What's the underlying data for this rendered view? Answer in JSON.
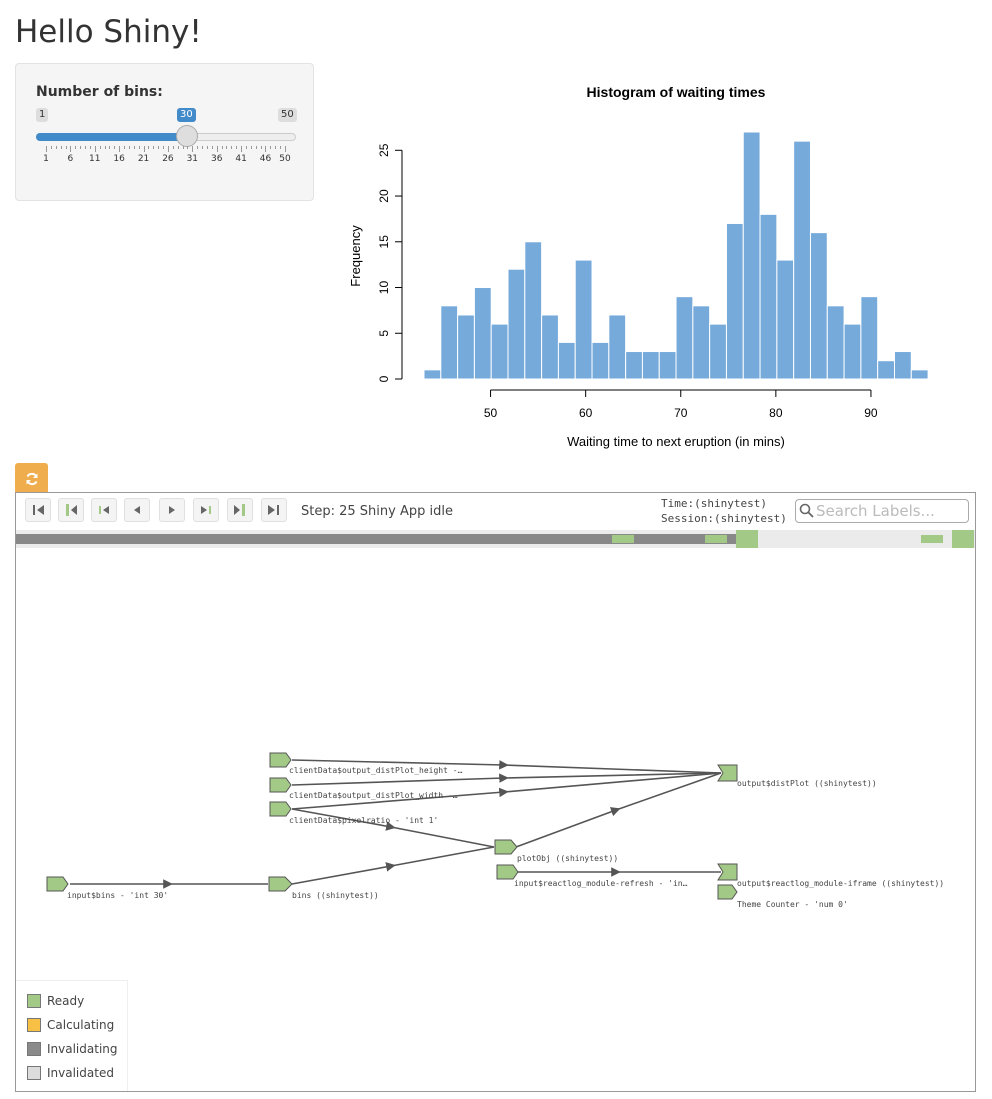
{
  "page": {
    "title": "Hello Shiny!"
  },
  "sidebar": {
    "slider": {
      "label": "Number of bins:",
      "min": 1,
      "max": 50,
      "value": 30,
      "min_label": "1",
      "max_label": "50",
      "value_label": "30",
      "ticks": [
        "1",
        "6",
        "11",
        "16",
        "21",
        "26",
        "31",
        "36",
        "41",
        "46",
        "50"
      ],
      "accent": "#428bca"
    }
  },
  "chart_data": {
    "type": "bar",
    "title": "Histogram of waiting times",
    "xlabel": "Waiting time to next eruption (in mins)",
    "ylabel": "Frequency",
    "bin_start": 43,
    "bin_width": 1.767,
    "values": [
      1,
      8,
      7,
      10,
      6,
      12,
      15,
      7,
      4,
      13,
      4,
      7,
      3,
      3,
      3,
      9,
      8,
      6,
      17,
      27,
      18,
      13,
      26,
      16,
      8,
      6,
      9,
      2,
      3,
      1
    ],
    "xlim": [
      43,
      96
    ],
    "xticks": [
      50,
      60,
      70,
      80,
      90
    ],
    "yticks": [
      0,
      5,
      10,
      15,
      20,
      25
    ],
    "ylim": [
      0,
      27
    ],
    "bar_color": "#75aadb",
    "grid": false
  },
  "reactlog": {
    "refresh_icon": "refresh-icon",
    "toolbar_buttons": [
      {
        "name": "first-step-button",
        "icon": "skip-to-start-icon"
      },
      {
        "name": "prev-idle-button",
        "icon": "prev-idle-icon"
      },
      {
        "name": "prev-output-button",
        "icon": "prev-output-icon"
      },
      {
        "name": "prev-step-button",
        "icon": "step-back-icon"
      },
      {
        "name": "next-step-button",
        "icon": "step-forward-icon"
      },
      {
        "name": "next-output-button",
        "icon": "next-output-icon"
      },
      {
        "name": "next-idle-button",
        "icon": "next-idle-icon"
      },
      {
        "name": "last-step-button",
        "icon": "skip-to-end-icon"
      }
    ],
    "step_text": "Step: 25 Shiny App idle",
    "time_text": "Time:(shinytest)",
    "session_text": "Session:(shinytest)",
    "search_placeholder": "Search Labels...",
    "nodes": {
      "input_bins": "input$bins - 'int 30'",
      "client_height": "clientData$output_distPlot_height -…",
      "client_width": "clientData$output_distPlot_width -…",
      "client_pixelratio": "clientData$pixelratio - 'int 1'",
      "bins": "bins ((shinytest))",
      "plotObj": "plotObj ((shinytest))",
      "module_refresh": "input$reactlog_module-refresh - 'in…",
      "distPlot": "output$distPlot ((shinytest))",
      "module_iframe": "output$reactlog_module-iframe ((shinytest))",
      "theme_counter": "Theme Counter - 'num 0'"
    },
    "legend": [
      {
        "label": "Ready",
        "color": "#a3c986"
      },
      {
        "label": "Calculating",
        "color": "#f8c146"
      },
      {
        "label": "Invalidating",
        "color": "#8a8a8a"
      },
      {
        "label": "Invalidated",
        "color": "#dcdcdc"
      }
    ],
    "colors": {
      "ready": "#a3c986",
      "timeline": "#888888",
      "refresh_button": "#f0ad4e"
    }
  }
}
